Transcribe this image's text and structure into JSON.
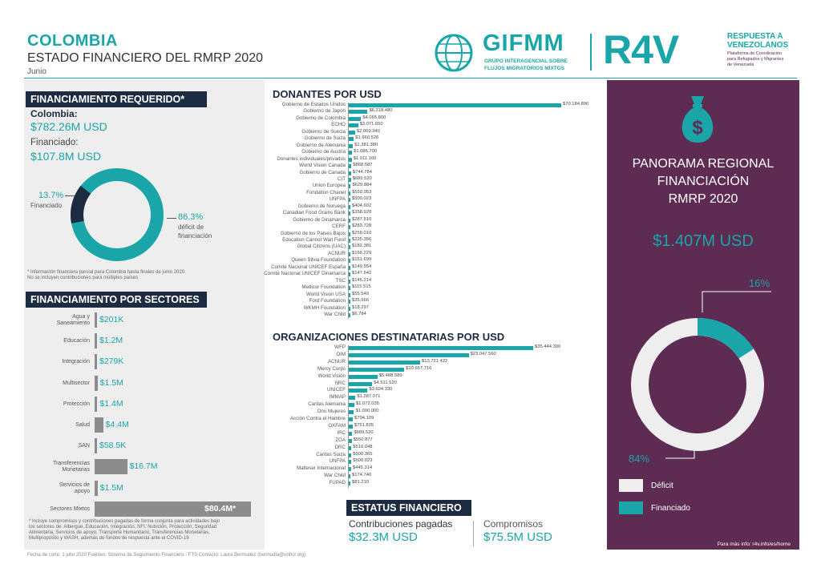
{
  "header": {
    "country": "COLOMBIA",
    "title": "ESTADO FINANCIERO DEL RMRP 2020",
    "month": "Junio",
    "gifmm_name": "GIFMM",
    "gifmm_sub1": "GRUPO INTERAGENCIAL SOBRE",
    "gifmm_sub2": "FLUJOS MIGRATORIOS MIXTOS",
    "r4v_name": "R4V",
    "r4v_title1": "RESPUESTA A",
    "r4v_title2": "VENEZOLANOS",
    "r4v_sub1": "Plataforma de Coordinación",
    "r4v_sub2": "para Refugiados y Migrantes",
    "r4v_sub3": "de Venezuela"
  },
  "funding": {
    "header": "FINANCIAMIENTO REQUERIDO*",
    "colombia_label": "Colombia:",
    "required": "$782.26M USD",
    "funded_label": "Financiado:",
    "funded": "$107.8M USD",
    "funded_pct": "13.7%",
    "funded_pct_label": "Financiado",
    "deficit_pct": "86.3%",
    "deficit_label1": "déficit de",
    "deficit_label2": "financiación",
    "funded_fraction": 0.137,
    "note1": "* Información financiera parcial para Colombia hasta finales de junio 2020.",
    "note2": "No se incluyen contribuciones para múltiples países"
  },
  "sectors": {
    "header": "FINANCIAMIENTO POR SECTORES",
    "items": [
      {
        "label1": "Agua y",
        "label2": "Saneamiento",
        "value": "$201K",
        "amount": 0.201
      },
      {
        "label1": "Educación",
        "label2": "",
        "value": "$1.2M",
        "amount": 1.2
      },
      {
        "label1": "Integración",
        "label2": "",
        "value": "$279K",
        "amount": 0.279
      },
      {
        "label1": "Multisector",
        "label2": "",
        "value": "$1.5M",
        "amount": 1.5
      },
      {
        "label1": "Protección",
        "label2": "",
        "value": "$1.4M",
        "amount": 1.4
      },
      {
        "label1": "Salud",
        "label2": "",
        "value": "$4.4M",
        "amount": 4.4
      },
      {
        "label1": "SAN",
        "label2": "",
        "value": "$58.5K",
        "amount": 0.0585
      },
      {
        "label1": "Transferencias",
        "label2": "Monetarias",
        "value": "$16.7M",
        "amount": 16.7
      },
      {
        "label1": "Servicios de",
        "label2": "apoyo",
        "value": "$1.5M",
        "amount": 1.5
      },
      {
        "label1": "Sectores Mixtos",
        "label2": "",
        "value": "$80.4M*",
        "amount": 80.4
      }
    ],
    "note1": "* Incluye compromisos y contribuciones pagadas de forma conjunta para actividades bajo",
    "note2": "los sectores de: Albergue, Educación, Integración, NFI, Nutrición, Protección, Seguridad",
    "note3": "Alimentaria, Servicios de apoyo, Transporte Humanitario, Transferencias Monetarias,",
    "note4": "Multipropósito y WASH, además de fondos de respuesta ante el COVID-19"
  },
  "footer": "Fecha de corte: 1 julio 2020     Fuentes: Sistema de Seguimiento Financiero - FTS     Contacto: Laura Bermudez (bermudla@unhcr.org)",
  "donors": {
    "title": "DONANTES POR USD",
    "items": [
      {
        "name": "Gobierno de Estados Unidos",
        "label": "$70.184.896",
        "value": 70184896
      },
      {
        "name": "Gobierno de Japon",
        "label": "$6.218.480",
        "value": 6218480
      },
      {
        "name": "Gobierno de Colombia",
        "label": "$4.065.800",
        "value": 4065800
      },
      {
        "name": "ECHO",
        "label": "$3.071.650",
        "value": 3071650
      },
      {
        "name": "Gobierno de Suecia",
        "label": "$2.069.340",
        "value": 2069340
      },
      {
        "name": "Gobierno de Suiza",
        "label": "$1.660.520",
        "value": 1660520
      },
      {
        "name": "Gobierno de Alemania",
        "label": "$1.381.380",
        "value": 1381380
      },
      {
        "name": "Gobierno de Austria",
        "label": "$1.086.700",
        "value": 1086700
      },
      {
        "name": "Donantes individuales/privados",
        "label": "$1.011.160",
        "value": 1011160
      },
      {
        "name": "World Vision Canada",
        "label": "$868.587",
        "value": 868587
      },
      {
        "name": "Gobierno de Canada",
        "label": "$744.784",
        "value": 744784
      },
      {
        "name": "CIT",
        "label": "$689.520",
        "value": 689520
      },
      {
        "name": "Union Europea",
        "label": "$629.884",
        "value": 629884
      },
      {
        "name": "Fondation Chanel",
        "label": "$550.053",
        "value": 550053
      },
      {
        "name": "UNFPA",
        "label": "$500.023",
        "value": 500023
      },
      {
        "name": "Gobierno de Noruega",
        "label": "$404.602",
        "value": 404602
      },
      {
        "name": "Canadian Food Grains Bank",
        "label": "$358.929",
        "value": 358929
      },
      {
        "name": "Gobierno de Dinamarca",
        "label": "$287.510",
        "value": 287510
      },
      {
        "name": "CERF",
        "label": "$283.728",
        "value": 283728
      },
      {
        "name": "Gobierno de los Paises Bajos",
        "label": "$259.010",
        "value": 259010
      },
      {
        "name": "Education Cannot Wait Fund",
        "label": "$225.356",
        "value": 225356
      },
      {
        "name": "Global Citizens (UAC)",
        "label": "$182.381",
        "value": 182381
      },
      {
        "name": "ACNUR",
        "label": "$166.229",
        "value": 166229
      },
      {
        "name": "Queen Silvia Foundation",
        "label": "$151.699",
        "value": 151699
      },
      {
        "name": "Comité Nacional UNICEF España",
        "label": "$149.554",
        "value": 149554
      },
      {
        "name": "Comité Nacional UNICEF Dinamarca",
        "label": "$147.542",
        "value": 147542
      },
      {
        "name": "TSC",
        "label": "$145.214",
        "value": 145214
      },
      {
        "name": "Medicor Foundation",
        "label": "$115.515",
        "value": 115515
      },
      {
        "name": "World Vision USA",
        "label": "$55.549",
        "value": 55549
      },
      {
        "name": "Ford Foundation",
        "label": "$35.666",
        "value": 35666
      },
      {
        "name": "WKMH Foundation",
        "label": "$18.297",
        "value": 18297
      },
      {
        "name": "War Child",
        "label": "$6.784",
        "value": 6784
      }
    ]
  },
  "orgs": {
    "title": "ORGANIZACIONES DESTINATARIAS POR USD",
    "items": [
      {
        "name": "WFP",
        "label": "$35.444.300",
        "value": 35444300
      },
      {
        "name": "OIM",
        "label": "$23.047.560",
        "value": 23047560
      },
      {
        "name": "ACNUR",
        "label": "$13.721.422",
        "value": 13721422
      },
      {
        "name": "Mercy Corps",
        "label": "$10.657.716",
        "value": 10657716
      },
      {
        "name": "World Vision",
        "label": "$5.488.589",
        "value": 5488589
      },
      {
        "name": "NRC",
        "label": "$4.511.520",
        "value": 4511520
      },
      {
        "name": "UNICEF",
        "label": "$3.604.330",
        "value": 3604330
      },
      {
        "name": "IMMAP",
        "label": "$1.287.071",
        "value": 1287071
      },
      {
        "name": "Caritas Alemania",
        "label": "$1.072.035",
        "value": 1072035
      },
      {
        "name": "Onu Mujeres",
        "label": "$1.000.000",
        "value": 1000000
      },
      {
        "name": "Acción Contra el Hambre",
        "label": "$794.109",
        "value": 794109
      },
      {
        "name": "OXFAM",
        "label": "$751.835",
        "value": 751835
      },
      {
        "name": "IRC",
        "label": "$689.520",
        "value": 689520
      },
      {
        "name": "ZOA",
        "label": "$550.877",
        "value": 550877
      },
      {
        "name": "DRC",
        "label": "$510.048",
        "value": 510048
      },
      {
        "name": "Caritas Suiza",
        "label": "$500.365",
        "value": 500365
      },
      {
        "name": "UNFPA",
        "label": "$500.023",
        "value": 500023
      },
      {
        "name": "Malteser Internacional",
        "label": "$445.314",
        "value": 445314
      },
      {
        "name": "War Child",
        "label": "$174.740",
        "value": 174740
      },
      {
        "name": "FUPAD",
        "label": "$81.210",
        "value": 81210
      }
    ]
  },
  "status": {
    "header": "ESTATUS FINANCIERO",
    "paid_label": "Contribuciones pagadas",
    "paid_value": "$32.3M USD",
    "commit_label": "Compromisos",
    "commit_value": "$75.5M USD"
  },
  "regional": {
    "title1": "PANORAMA REGIONAL",
    "title2": "FINANCIACIÓN",
    "title3": "RMRP 2020",
    "total": "$1.407M USD",
    "funded_pct": "16%",
    "deficit_pct": "84%",
    "funded_fraction": 0.16,
    "legend_deficit": "Déficit",
    "legend_funded": "Financiado",
    "more_info": "Para más info: r4v.info/es/home",
    "colors": {
      "deficit": "#eeeeee",
      "funded": "#1aa5a8",
      "panel": "#5e2b52"
    }
  }
}
